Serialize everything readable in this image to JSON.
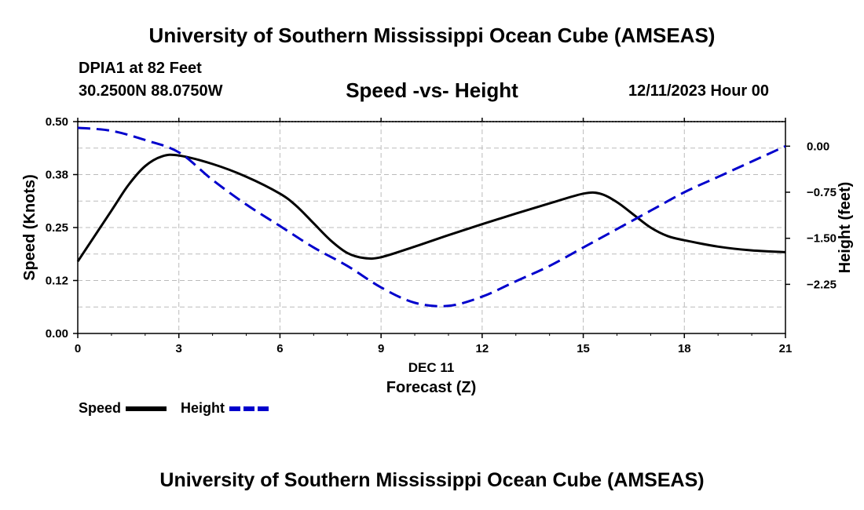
{
  "header": {
    "title": "University of Southern Mississippi Ocean Cube (AMSEAS)",
    "station": "DPIA1 at 82 Feet",
    "coords": "30.2500N  88.0750W",
    "date": "12/11/2023 Hour 00"
  },
  "footer": {
    "title": "University of Southern Mississippi Ocean Cube (AMSEAS)"
  },
  "legend": {
    "speed_label": "Speed",
    "height_label": "Height"
  },
  "chart_data": {
    "type": "line",
    "title": "Speed -vs- Height",
    "xlabel": "Forecast (Z)",
    "x_date_label": "DEC 11",
    "ylabel": "Speed (Knots)",
    "y2label": "Height (feet)",
    "xlim": [
      0,
      21
    ],
    "ylim": [
      0,
      0.5
    ],
    "y2lim": [
      -3.05,
      0.4
    ],
    "x_ticks": [
      0,
      3,
      6,
      9,
      12,
      15,
      18,
      21
    ],
    "x_tick_labels": [
      "0",
      "3",
      "6",
      "9",
      "12",
      "15",
      "18",
      "21"
    ],
    "y_ticks": [
      0,
      0.125,
      0.25,
      0.375,
      0.5
    ],
    "y_tick_labels": [
      "0.00",
      "0.12",
      "0.25",
      "0.38",
      "0.50"
    ],
    "y2_ticks": [
      0,
      -0.75,
      -1.5,
      -2.25
    ],
    "y2_tick_labels": [
      "0.00",
      "−0.75",
      "−1.50",
      "−2.25"
    ],
    "grid": true,
    "series": [
      {
        "name": "Speed",
        "axis": "left",
        "color": "#000000",
        "style": "solid",
        "x": [
          0,
          1,
          1.5,
          2,
          2.5,
          3,
          4,
          5,
          6,
          6.5,
          7,
          7.5,
          8,
          8.5,
          9,
          10,
          11,
          12,
          13,
          14,
          15,
          15.5,
          16,
          16.5,
          17,
          17.5,
          18,
          19,
          20,
          21
        ],
        "values": [
          0.17,
          0.29,
          0.35,
          0.395,
          0.418,
          0.42,
          0.4,
          0.37,
          0.33,
          0.3,
          0.26,
          0.22,
          0.19,
          0.178,
          0.18,
          0.205,
          0.232,
          0.258,
          0.283,
          0.307,
          0.33,
          0.33,
          0.31,
          0.28,
          0.25,
          0.23,
          0.22,
          0.205,
          0.196,
          0.192
        ]
      },
      {
        "name": "Height",
        "axis": "right",
        "color": "#0000cc",
        "style": "dashed",
        "x": [
          0,
          1,
          2,
          3,
          4,
          5,
          6,
          7,
          8,
          9,
          10,
          11,
          12,
          13,
          14,
          15,
          16,
          17,
          18,
          19,
          20,
          21
        ],
        "values": [
          0.3,
          0.25,
          0.1,
          -0.1,
          -0.55,
          -0.95,
          -1.3,
          -1.65,
          -1.95,
          -2.3,
          -2.55,
          -2.6,
          -2.45,
          -2.2,
          -1.95,
          -1.65,
          -1.35,
          -1.05,
          -0.75,
          -0.5,
          -0.25,
          0.0
        ]
      }
    ]
  }
}
